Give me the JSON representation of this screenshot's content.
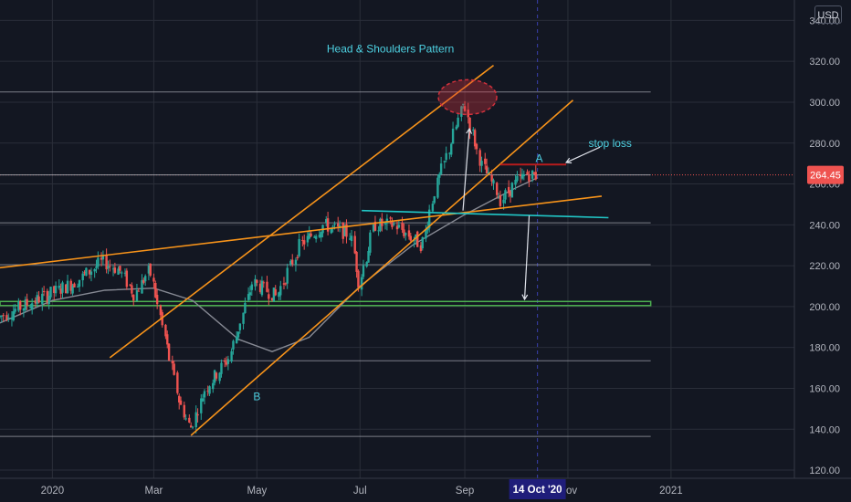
{
  "currency": "USD",
  "colors": {
    "background": "#131722",
    "grid": "#2a2e39",
    "up": "#26a69a",
    "down": "#ef5350",
    "trend": "#f7931a",
    "ma": "#868993",
    "price_label": "#ef5350",
    "date_label": "#1f1d7a",
    "target_box": "#4caf50",
    "neckline": "#21c7c7",
    "head_circle": "#d0313c",
    "annotation": "#4dd0e1"
  },
  "chart_data": {
    "type": "candlestick",
    "x_axis": {
      "range": [
        "2019-12-01",
        "2021-03-15"
      ],
      "tick_labels": [
        {
          "date": "2020-01-01",
          "label": "2020"
        },
        {
          "date": "2020-03-01",
          "label": "Mar"
        },
        {
          "date": "2020-05-01",
          "label": "May"
        },
        {
          "date": "2020-07-01",
          "label": "Jul"
        },
        {
          "date": "2020-09-01",
          "label": "Sep"
        },
        {
          "date": "2020-11-01",
          "label": "Nov"
        },
        {
          "date": "2021-01-01",
          "label": "2021"
        }
      ],
      "crosshair_date": "2020-10-14",
      "crosshair_label": "14 Oct '20"
    },
    "y_axis": {
      "range": [
        116,
        350
      ],
      "ticks": [
        "120.00",
        "140.00",
        "160.00",
        "180.00",
        "200.00",
        "220.00",
        "240.00",
        "260.00",
        "280.00",
        "300.00",
        "320.00",
        "340.00"
      ]
    },
    "last_price": 264.45,
    "last_price_label": "264.45",
    "price_series": [
      {
        "date": "2019-12-01",
        "close": 195
      },
      {
        "date": "2019-12-20",
        "close": 202
      },
      {
        "date": "2020-01-15",
        "close": 212
      },
      {
        "date": "2020-01-31",
        "close": 222
      },
      {
        "date": "2020-02-10",
        "close": 218
      },
      {
        "date": "2020-02-19",
        "close": 206
      },
      {
        "date": "2020-02-28",
        "close": 218
      },
      {
        "date": "2020-03-08",
        "close": 185
      },
      {
        "date": "2020-03-16",
        "close": 155
      },
      {
        "date": "2020-03-23",
        "close": 140
      },
      {
        "date": "2020-04-01",
        "close": 160
      },
      {
        "date": "2020-04-15",
        "close": 175
      },
      {
        "date": "2020-04-29",
        "close": 212
      },
      {
        "date": "2020-05-13",
        "close": 205
      },
      {
        "date": "2020-05-27",
        "close": 230
      },
      {
        "date": "2020-06-10",
        "close": 240
      },
      {
        "date": "2020-06-26",
        "close": 235
      },
      {
        "date": "2020-07-01",
        "close": 212
      },
      {
        "date": "2020-07-10",
        "close": 240
      },
      {
        "date": "2020-07-22",
        "close": 240
      },
      {
        "date": "2020-08-07",
        "close": 230
      },
      {
        "date": "2020-08-14",
        "close": 255
      },
      {
        "date": "2020-08-21",
        "close": 272
      },
      {
        "date": "2020-09-01",
        "close": 300
      },
      {
        "date": "2020-09-04",
        "close": 290
      },
      {
        "date": "2020-09-11",
        "close": 270
      },
      {
        "date": "2020-09-23",
        "close": 252
      },
      {
        "date": "2020-10-01",
        "close": 260
      },
      {
        "date": "2020-10-08",
        "close": 265
      },
      {
        "date": "2020-10-14",
        "close": 264
      }
    ],
    "moving_average": [
      {
        "date": "2019-12-01",
        "value": 192
      },
      {
        "date": "2020-01-01",
        "value": 203
      },
      {
        "date": "2020-02-01",
        "value": 208
      },
      {
        "date": "2020-03-01",
        "value": 209
      },
      {
        "date": "2020-03-24",
        "value": 203
      },
      {
        "date": "2020-04-20",
        "value": 184
      },
      {
        "date": "2020-05-10",
        "value": 178
      },
      {
        "date": "2020-06-01",
        "value": 185
      },
      {
        "date": "2020-07-01",
        "value": 210
      },
      {
        "date": "2020-08-01",
        "value": 230
      },
      {
        "date": "2020-09-01",
        "value": 245
      },
      {
        "date": "2020-10-01",
        "value": 258
      },
      {
        "date": "2020-10-14",
        "value": 263
      }
    ],
    "horizontal_levels": [
      305,
      264.45,
      241,
      220.5,
      173.5,
      136.5
    ],
    "trendlines": [
      {
        "from": {
          "date": "2019-12-01",
          "price": 219
        },
        "to": {
          "date": "2020-11-21",
          "price": 254
        }
      },
      {
        "from": {
          "date": "2020-02-04",
          "price": 175
        },
        "to": {
          "date": "2020-09-18",
          "price": 318
        }
      },
      {
        "from": {
          "date": "2020-03-23",
          "price": 137
        },
        "to": {
          "date": "2020-11-04",
          "price": 301
        }
      }
    ],
    "neckline": {
      "from": {
        "date": "2020-07-02",
        "price": 247
      },
      "to": {
        "date": "2020-11-25",
        "price": 243.5
      }
    },
    "resistance_A": {
      "from": {
        "date": "2020-09-22",
        "price": 269.5
      },
      "to": {
        "date": "2020-10-31",
        "price": 269.5
      }
    },
    "target_zone": {
      "from": "2019-12-01",
      "to": "2020-12-20",
      "top": 202.5,
      "bottom": 200.5
    },
    "head_marker": {
      "date": "2020-09-01",
      "price": 302.5
    },
    "annotations": {
      "title": "Head & Shoulders Pattern",
      "stop_loss": "stop loss",
      "point_a": "A",
      "point_b": "B"
    }
  }
}
